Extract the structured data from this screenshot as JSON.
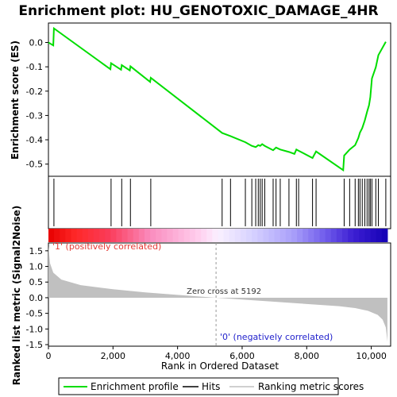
{
  "chart_data": {
    "type": "line",
    "title": "Enrichment plot: HU_GENOTOXIC_DAMAGE_4HR",
    "xlabel": "Rank in Ordered Dataset",
    "ylabel_top": "Enrichment score (ES)",
    "ylabel_bottom": "Ranked list metric (Signal2Noise)",
    "xlim": [
      0,
      10600
    ],
    "ylim_es": [
      -0.55,
      0.08
    ],
    "ylim_metric": [
      -1.55,
      1.75
    ],
    "x_ticks": [
      0,
      2000,
      4000,
      6000,
      8000,
      10000
    ],
    "x_tick_labels": [
      "0",
      "2,000",
      "4,000",
      "6,000",
      "8,000",
      "10,000"
    ],
    "es_ticks": [
      0.0,
      -0.1,
      -0.2,
      -0.3,
      -0.4,
      -0.5
    ],
    "es_tick_labels": [
      "0.0",
      "-0.1",
      "-0.2",
      "-0.3",
      "-0.4",
      "-0.5"
    ],
    "metric_ticks": [
      1.5,
      1.0,
      0.5,
      0.0,
      -0.5,
      -1.0,
      -1.5
    ],
    "metric_tick_labels": [
      "1.5",
      "1.0",
      "0.5",
      "0.0",
      "-0.5",
      "-1.0",
      "-1.5"
    ],
    "enrichment_profile": {
      "x": [
        0,
        150,
        170,
        1920,
        1940,
        2250,
        2270,
        2520,
        2540,
        3150,
        3170,
        5380,
        5640,
        6100,
        6300,
        6420,
        6500,
        6560,
        6620,
        6700,
        6960,
        7050,
        7180,
        7450,
        7620,
        7680,
        7750,
        8180,
        8290,
        9130,
        9160,
        9330,
        9500,
        9600,
        9650,
        9720,
        9800,
        9870,
        9930,
        9970,
        10020,
        10140,
        10220,
        10450
      ],
      "y": [
        0.0,
        -0.012,
        0.058,
        -0.11,
        -0.085,
        -0.112,
        -0.093,
        -0.115,
        -0.098,
        -0.162,
        -0.145,
        -0.372,
        -0.385,
        -0.41,
        -0.425,
        -0.43,
        -0.422,
        -0.425,
        -0.418,
        -0.425,
        -0.443,
        -0.432,
        -0.44,
        -0.45,
        -0.458,
        -0.44,
        -0.445,
        -0.475,
        -0.448,
        -0.525,
        -0.465,
        -0.44,
        -0.422,
        -0.392,
        -0.37,
        -0.352,
        -0.32,
        -0.285,
        -0.258,
        -0.225,
        -0.148,
        -0.102,
        -0.052,
        0.003
      ]
    },
    "hits": [
      170,
      1940,
      2270,
      2540,
      3170,
      5380,
      5640,
      6100,
      6300,
      6420,
      6500,
      6560,
      6620,
      6700,
      6960,
      7050,
      7180,
      7450,
      7680,
      7750,
      8180,
      8290,
      9160,
      9330,
      9500,
      9600,
      9650,
      9720,
      9800,
      9870,
      9930,
      9970,
      10020,
      10140,
      10220,
      10450
    ],
    "metric_curve": {
      "x": [
        0,
        50,
        150,
        400,
        1000,
        2000,
        3000,
        4000,
        5192,
        6000,
        7000,
        8000,
        9000,
        9500,
        9900,
        10200,
        10350,
        10450,
        10500
      ],
      "y": [
        1.65,
        1.1,
        0.8,
        0.58,
        0.4,
        0.27,
        0.17,
        0.09,
        0.0,
        -0.06,
        -0.13,
        -0.2,
        -0.27,
        -0.33,
        -0.42,
        -0.55,
        -0.7,
        -0.95,
        -1.4
      ]
    },
    "zero_cross_rank": 5192,
    "zero_cross_label": "Zero cross at 5192",
    "positive_label": "'1' (positively correlated)",
    "negative_label": "'0' (negatively correlated)",
    "colors": {
      "profile": "#00dd00",
      "hits": "#000000",
      "metric_fill": "#c0c0c0",
      "positive": "#ff0000",
      "negative": "#0000cc"
    },
    "legend": {
      "placement": "bottom",
      "entries": [
        {
          "label": "Enrichment profile",
          "kind": "line",
          "color": "#00dd00"
        },
        {
          "label": "Hits",
          "kind": "line",
          "color": "#000000"
        },
        {
          "label": "Ranking metric scores",
          "kind": "line",
          "color": "#c0c0c0"
        }
      ]
    }
  }
}
